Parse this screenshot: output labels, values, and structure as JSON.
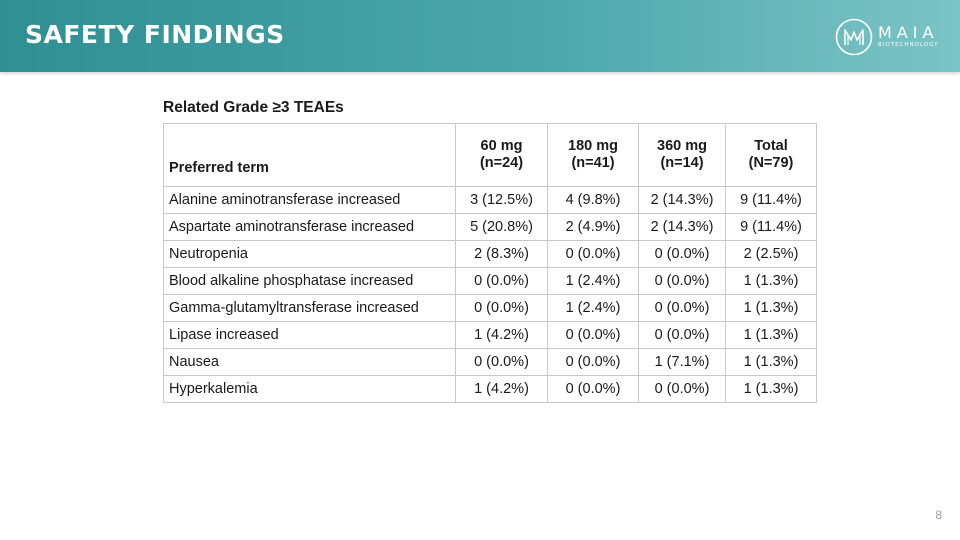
{
  "header": {
    "title": "SAFETY FINDINGS",
    "logo_name": "MAIA",
    "logo_sub": "BIOTECHNOLOGY"
  },
  "table": {
    "title": "Related Grade ≥3 TEAEs",
    "columns": [
      {
        "line1": "Preferred term",
        "line2": ""
      },
      {
        "line1": "60 mg",
        "line2": "(n=24)"
      },
      {
        "line1": "180 mg",
        "line2": "(n=41)"
      },
      {
        "line1": "360 mg",
        "line2": "(n=14)"
      },
      {
        "line1": "Total",
        "line2": "(N=79)"
      }
    ],
    "rows": [
      [
        "Alanine aminotransferase increased",
        "3 (12.5%)",
        "4 (9.8%)",
        "2 (14.3%)",
        "9 (11.4%)"
      ],
      [
        "Aspartate aminotransferase increased",
        "5 (20.8%)",
        "2 (4.9%)",
        "2 (14.3%)",
        "9 (11.4%)"
      ],
      [
        "Neutropenia",
        "2 (8.3%)",
        "0 (0.0%)",
        "0 (0.0%)",
        "2 (2.5%)"
      ],
      [
        "Blood alkaline phosphatase increased",
        "0 (0.0%)",
        "1 (2.4%)",
        "0 (0.0%)",
        "1 (1.3%)"
      ],
      [
        "Gamma-glutamyltransferase increased",
        "0 (0.0%)",
        "1 (2.4%)",
        "0 (0.0%)",
        "1 (1.3%)"
      ],
      [
        "Lipase increased",
        "1 (4.2%)",
        "0 (0.0%)",
        "0 (0.0%)",
        "1 (1.3%)"
      ],
      [
        "Nausea",
        "0 (0.0%)",
        "0 (0.0%)",
        "1 (7.1%)",
        "1 (1.3%)"
      ],
      [
        "Hyperkalemia",
        "1 (4.2%)",
        "0 (0.0%)",
        "0 (0.0%)",
        "1 (1.3%)"
      ]
    ]
  },
  "footer": {
    "page_number": "8"
  },
  "colors": {
    "header_start": "#2f8f93",
    "header_end": "#7cc4c6",
    "border": "#c8c8c8"
  }
}
